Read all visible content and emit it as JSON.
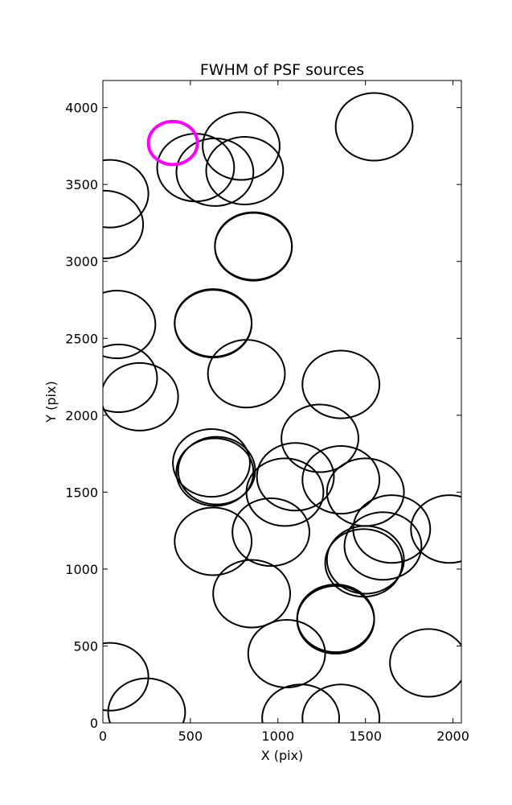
{
  "chart_data": {
    "type": "scatter",
    "title": "FWHM of PSF sources",
    "xlabel": "X (pix)",
    "ylabel": "Y (pix)",
    "xlim": [
      0,
      2048
    ],
    "ylim": [
      0,
      4176
    ],
    "xticks": [
      0,
      500,
      1000,
      1500,
      2000
    ],
    "yticks": [
      0,
      500,
      1000,
      1500,
      2000,
      2500,
      3000,
      3500,
      4000
    ],
    "grid": false,
    "marker": "open circle",
    "colors": {
      "sources": "#000000",
      "highlight": "#ff00ff"
    },
    "sources": [
      {
        "x": 1550,
        "y": 3875,
        "r": 220
      },
      {
        "x": 40,
        "y": 3440,
        "r": 220
      },
      {
        "x": 10,
        "y": 3240,
        "r": 220
      },
      {
        "x": 530,
        "y": 3610,
        "r": 220
      },
      {
        "x": 640,
        "y": 3580,
        "r": 220
      },
      {
        "x": 790,
        "y": 3750,
        "r": 220
      },
      {
        "x": 810,
        "y": 3590,
        "r": 220
      },
      {
        "x": 860,
        "y": 3100,
        "r": 220
      },
      {
        "x": 860,
        "y": 3095,
        "r": 220
      },
      {
        "x": 80,
        "y": 2590,
        "r": 220
      },
      {
        "x": 630,
        "y": 2600,
        "r": 220
      },
      {
        "x": 630,
        "y": 2595,
        "r": 220
      },
      {
        "x": 90,
        "y": 2240,
        "r": 220
      },
      {
        "x": 210,
        "y": 2120,
        "r": 220
      },
      {
        "x": 820,
        "y": 2270,
        "r": 220
      },
      {
        "x": 1360,
        "y": 2200,
        "r": 220
      },
      {
        "x": 1240,
        "y": 1850,
        "r": 220
      },
      {
        "x": 620,
        "y": 1690,
        "r": 220
      },
      {
        "x": 640,
        "y": 1630,
        "r": 220
      },
      {
        "x": 650,
        "y": 1640,
        "r": 220
      },
      {
        "x": 1100,
        "y": 1600,
        "r": 220
      },
      {
        "x": 1040,
        "y": 1500,
        "r": 220
      },
      {
        "x": 1360,
        "y": 1580,
        "r": 220
      },
      {
        "x": 1500,
        "y": 1500,
        "r": 220
      },
      {
        "x": 1650,
        "y": 1260,
        "r": 220
      },
      {
        "x": 1980,
        "y": 1260,
        "r": 220
      },
      {
        "x": 1600,
        "y": 1150,
        "r": 220
      },
      {
        "x": 1490,
        "y": 1040,
        "r": 220
      },
      {
        "x": 1500,
        "y": 1060,
        "r": 220
      },
      {
        "x": 630,
        "y": 1180,
        "r": 220
      },
      {
        "x": 960,
        "y": 1240,
        "r": 220
      },
      {
        "x": 850,
        "y": 840,
        "r": 220
      },
      {
        "x": 1330,
        "y": 670,
        "r": 220
      },
      {
        "x": 1330,
        "y": 680,
        "r": 220
      },
      {
        "x": 1050,
        "y": 450,
        "r": 220
      },
      {
        "x": 1860,
        "y": 390,
        "r": 220
      },
      {
        "x": 40,
        "y": 300,
        "r": 220
      },
      {
        "x": 250,
        "y": 70,
        "r": 220
      },
      {
        "x": 1130,
        "y": 30,
        "r": 220
      },
      {
        "x": 1360,
        "y": 30,
        "r": 220
      }
    ],
    "highlight": {
      "x": 400,
      "y": 3770,
      "r": 140
    }
  }
}
